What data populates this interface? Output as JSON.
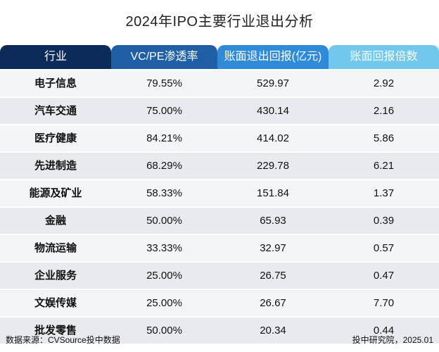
{
  "title": "2024年IPO主要行业退出分析",
  "headers": [
    "行业",
    "VC/PE渗透率",
    "账面退出回报(亿元)",
    "账面回报倍数"
  ],
  "rows": [
    [
      "电子信息",
      "79.55%",
      "529.97",
      "2.92"
    ],
    [
      "汽车交通",
      "75.00%",
      "430.14",
      "2.16"
    ],
    [
      "医疗健康",
      "84.21%",
      "414.02",
      "5.86"
    ],
    [
      "先进制造",
      "68.29%",
      "229.78",
      "6.21"
    ],
    [
      "能源及矿业",
      "58.33%",
      "151.84",
      "1.37"
    ],
    [
      "金融",
      "50.00%",
      "65.93",
      "0.39"
    ],
    [
      "物流运输",
      "33.33%",
      "32.97",
      "0.57"
    ],
    [
      "企业服务",
      "25.00%",
      "26.75",
      "0.47"
    ],
    [
      "文娱传媒",
      "25.00%",
      "26.67",
      "7.70"
    ],
    [
      "批发零售",
      "50.00%",
      "20.34",
      "0.44"
    ]
  ],
  "footer": {
    "source": "数据来源：CVSource投中数据",
    "credit": "投中研究院，2025.01"
  },
  "colors": {
    "header_industry": "#0d2b5a",
    "header_penetration": "#1e5fa5",
    "header_return": "#2f8bd8",
    "header_multiple": "#71c7ec",
    "row_bg": "#e9eaed"
  },
  "chart_data": {
    "type": "table",
    "title": "2024年IPO主要行业退出分析",
    "columns": [
      "行业",
      "VC/PE渗透率",
      "账面退出回报(亿元)",
      "账面回报倍数"
    ],
    "categories": [
      "电子信息",
      "汽车交通",
      "医疗健康",
      "先进制造",
      "能源及矿业",
      "金融",
      "物流运输",
      "企业服务",
      "文娱传媒",
      "批发零售"
    ],
    "series": [
      {
        "name": "VC/PE渗透率",
        "values": [
          79.55,
          75.0,
          84.21,
          68.29,
          58.33,
          50.0,
          33.33,
          25.0,
          25.0,
          50.0
        ]
      },
      {
        "name": "账面退出回报(亿元)",
        "values": [
          529.97,
          430.14,
          414.02,
          229.78,
          151.84,
          65.93,
          32.97,
          26.75,
          26.67,
          20.34
        ]
      },
      {
        "name": "账面回报倍数",
        "values": [
          2.92,
          2.16,
          5.86,
          6.21,
          1.37,
          0.39,
          0.57,
          0.47,
          7.7,
          0.44
        ]
      }
    ]
  }
}
